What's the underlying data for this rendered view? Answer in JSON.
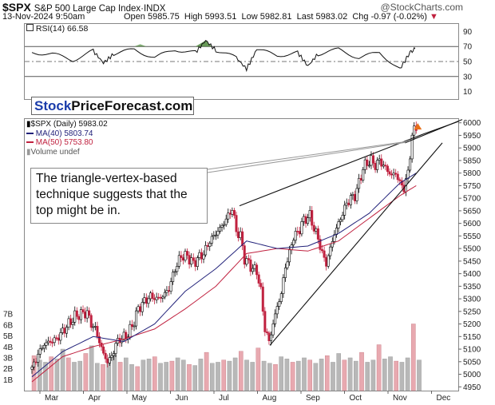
{
  "header": {
    "symbol": "$SPX",
    "name": "S&P 500 Large Cap Index",
    "exchange": "INDX",
    "watermark": "@StockCharts.com",
    "date": "13-Nov-2024 9:50am",
    "quote": {
      "open_label": "Open",
      "open": "5985.75",
      "high_label": "High",
      "high": "5993.51",
      "low_label": "Low",
      "low": "5982.81",
      "last_label": "Last",
      "last": "5983.02",
      "chg_label": "Chg",
      "chg": "-0.97 (-0.02%)"
    }
  },
  "rsi_panel": {
    "label": "RSI(14) 66.58",
    "ticks": [
      "90",
      "70",
      "50",
      "30",
      "10"
    ],
    "colors": {
      "overbought": "#4d8a3b",
      "oversold": "#4d8a3b"
    }
  },
  "brand": {
    "part1": "Stock",
    "part2": "PriceForecast.com",
    "part1_color": "#1a3caa"
  },
  "legend": {
    "price": "$SPX (Daily) 5983.02",
    "ma40": "MA(40) 5803.74",
    "ma50": "MA(50) 5753.80",
    "volume": "Volume undef",
    "colors": {
      "ma40": "#22227a",
      "ma50": "#c0213f",
      "up": "#000000",
      "down": "#c0213f"
    }
  },
  "annotation": "The triangle-vertex-based technique suggests that the top might be in.",
  "chart_data": {
    "type": "candlestick",
    "x_labels": [
      "Mar",
      "Apr",
      "May",
      "Jun",
      "Jul",
      "Aug",
      "Sep",
      "Oct",
      "Nov",
      "Dec"
    ],
    "y_ticks": [
      6000,
      5950,
      5900,
      5850,
      5800,
      5750,
      5700,
      5650,
      5600,
      5550,
      5500,
      5450,
      5400,
      5350,
      5300,
      5250,
      5200,
      5150,
      5100,
      5050,
      5000,
      4950
    ],
    "y_range": [
      4935,
      6015
    ],
    "volume_ticks": [
      "7B",
      "6B",
      "5B",
      "4B",
      "3B",
      "2B",
      "1B"
    ],
    "price_path": [
      [
        0,
        5020
      ],
      [
        6,
        5080
      ],
      [
        12,
        5120
      ],
      [
        18,
        5130
      ],
      [
        24,
        5140
      ],
      [
        30,
        5170
      ],
      [
        36,
        5200
      ],
      [
        42,
        5230
      ],
      [
        48,
        5240
      ],
      [
        54,
        5245
      ],
      [
        58,
        5200
      ],
      [
        62,
        5180
      ],
      [
        66,
        5130
      ],
      [
        70,
        5080
      ],
      [
        74,
        5050
      ],
      [
        78,
        5070
      ],
      [
        82,
        5120
      ],
      [
        86,
        5140
      ],
      [
        92,
        5150
      ],
      [
        98,
        5190
      ],
      [
        104,
        5260
      ],
      [
        110,
        5290
      ],
      [
        116,
        5310
      ],
      [
        122,
        5300
      ],
      [
        128,
        5310
      ],
      [
        134,
        5340
      ],
      [
        140,
        5420
      ],
      [
        146,
        5470
      ],
      [
        152,
        5470
      ],
      [
        158,
        5440
      ],
      [
        162,
        5460
      ],
      [
        168,
        5480
      ],
      [
        174,
        5530
      ],
      [
        180,
        5560
      ],
      [
        186,
        5590
      ],
      [
        192,
        5630
      ],
      [
        196,
        5660
      ],
      [
        200,
        5570
      ],
      [
        204,
        5550
      ],
      [
        208,
        5460
      ],
      [
        212,
        5440
      ],
      [
        216,
        5420
      ],
      [
        220,
        5410
      ],
      [
        224,
        5330
      ],
      [
        228,
        5180
      ],
      [
        232,
        5130
      ],
      [
        236,
        5200
      ],
      [
        240,
        5270
      ],
      [
        244,
        5320
      ],
      [
        248,
        5430
      ],
      [
        252,
        5480
      ],
      [
        256,
        5550
      ],
      [
        260,
        5560
      ],
      [
        264,
        5600
      ],
      [
        268,
        5620
      ],
      [
        272,
        5630
      ],
      [
        276,
        5580
      ],
      [
        280,
        5540
      ],
      [
        284,
        5480
      ],
      [
        288,
        5440
      ],
      [
        292,
        5500
      ],
      [
        296,
        5560
      ],
      [
        300,
        5600
      ],
      [
        304,
        5640
      ],
      [
        308,
        5680
      ],
      [
        312,
        5700
      ],
      [
        316,
        5710
      ],
      [
        320,
        5760
      ],
      [
        324,
        5820
      ],
      [
        328,
        5840
      ],
      [
        332,
        5850
      ],
      [
        336,
        5830
      ],
      [
        340,
        5850
      ],
      [
        344,
        5830
      ],
      [
        348,
        5810
      ],
      [
        352,
        5790
      ],
      [
        356,
        5800
      ],
      [
        360,
        5760
      ],
      [
        364,
        5740
      ],
      [
        368,
        5800
      ],
      [
        372,
        5950
      ],
      [
        376,
        5985
      ]
    ],
    "ma40_path": [
      [
        0,
        4990
      ],
      [
        30,
        5090
      ],
      [
        60,
        5150
      ],
      [
        90,
        5130
      ],
      [
        120,
        5200
      ],
      [
        150,
        5330
      ],
      [
        180,
        5420
      ],
      [
        210,
        5530
      ],
      [
        240,
        5500
      ],
      [
        270,
        5510
      ],
      [
        300,
        5560
      ],
      [
        330,
        5640
      ],
      [
        360,
        5760
      ],
      [
        376,
        5800
      ]
    ],
    "ma50_path": [
      [
        0,
        4970
      ],
      [
        30,
        5070
      ],
      [
        60,
        5110
      ],
      [
        90,
        5140
      ],
      [
        120,
        5180
      ],
      [
        150,
        5260
      ],
      [
        180,
        5350
      ],
      [
        210,
        5480
      ],
      [
        240,
        5500
      ],
      [
        270,
        5490
      ],
      [
        300,
        5530
      ],
      [
        330,
        5620
      ],
      [
        360,
        5710
      ],
      [
        376,
        5750
      ]
    ],
    "rsi_path": [
      [
        0,
        62
      ],
      [
        20,
        60
      ],
      [
        40,
        52
      ],
      [
        60,
        64
      ],
      [
        70,
        48
      ],
      [
        80,
        60
      ],
      [
        100,
        66
      ],
      [
        120,
        55
      ],
      [
        140,
        66
      ],
      [
        160,
        62
      ],
      [
        170,
        78
      ],
      [
        180,
        65
      ],
      [
        200,
        55
      ],
      [
        210,
        40
      ],
      [
        220,
        66
      ],
      [
        240,
        58
      ],
      [
        260,
        62
      ],
      [
        270,
        44
      ],
      [
        280,
        60
      ],
      [
        300,
        66
      ],
      [
        320,
        55
      ],
      [
        340,
        62
      ],
      [
        360,
        40
      ],
      [
        370,
        62
      ],
      [
        376,
        68
      ]
    ],
    "rsi_range": [
      0,
      100
    ],
    "volume_values": [
      3.2,
      2.8,
      2.6,
      3.1,
      2.9,
      3.8,
      3.0,
      2.6,
      2.7,
      3.4,
      4.1,
      2.5,
      2.4,
      2.9,
      3.3,
      2.6,
      3.0,
      2.4,
      2.2,
      2.8,
      2.9,
      3.1,
      2.5,
      2.6,
      2.7,
      3.0,
      2.8,
      2.4,
      2.3,
      2.9,
      3.5,
      2.5,
      2.6,
      2.8,
      2.7,
      3.0,
      3.6,
      2.8,
      2.6,
      3.9,
      2.7,
      2.5,
      2.4,
      3.1,
      2.9,
      2.6,
      2.7,
      3.0,
      2.8,
      2.5,
      2.9,
      3.2,
      2.6,
      3.4,
      2.8,
      3.0,
      2.7,
      3.5,
      2.6,
      2.8,
      4.2,
      2.9,
      3.1,
      2.7,
      2.6,
      3.0,
      6.1,
      2.8
    ],
    "trendlines": [
      {
        "name": "upper",
        "from": [
          266,
          5670
        ],
        "to": [
          496,
          5955
        ]
      },
      {
        "name": "lower",
        "from": [
          304,
          5115
        ],
        "to": [
          520,
          5920
        ]
      },
      {
        "name": "upper2",
        "from": [
          473,
          5920
        ],
        "to": [
          545,
          6013
        ]
      }
    ]
  }
}
